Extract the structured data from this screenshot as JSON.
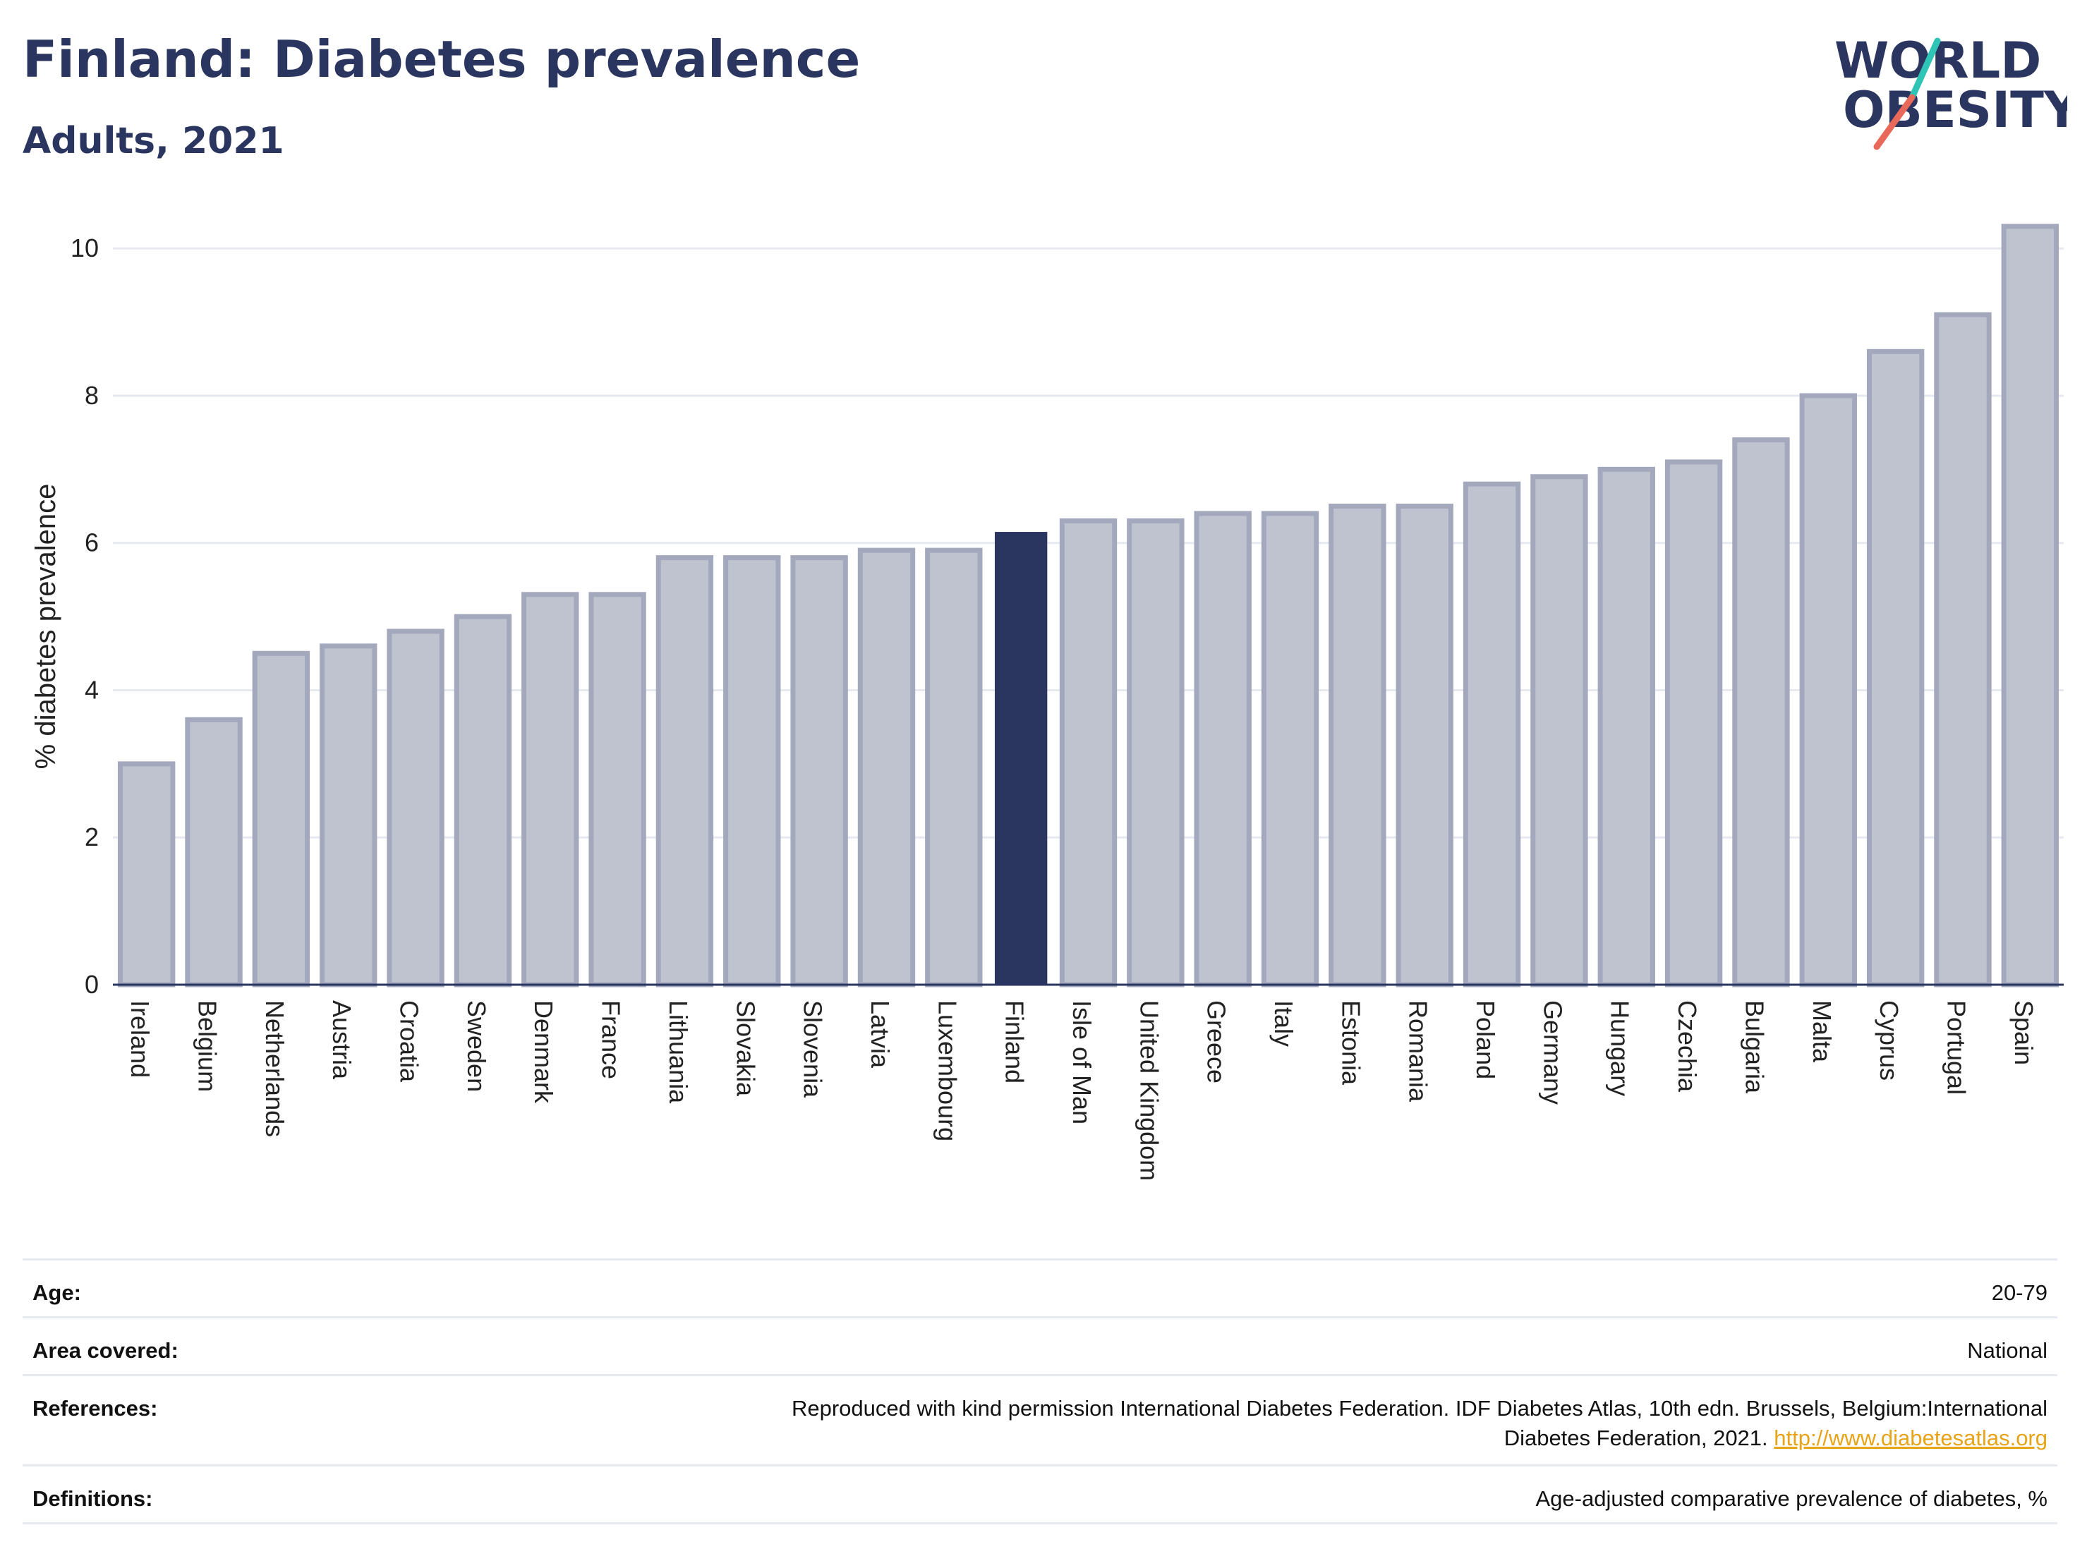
{
  "header": {
    "title": "Finland: Diabetes prevalence",
    "subtitle": "Adults, 2021"
  },
  "logo": {
    "line1": "WORLD",
    "line2": "OBESITY",
    "colors": {
      "text": "#2a3560",
      "slash_top": "#2ec4b6",
      "slash_bottom": "#e8685a"
    }
  },
  "colors": {
    "highlight_bar": "#2a3560",
    "other_bar_fill": "#bfc3d0",
    "other_bar_stroke": "#a3a8bd",
    "gridline": "#e6e9f0",
    "link": "#e8a317"
  },
  "chart_data": {
    "type": "bar",
    "title": "",
    "xlabel": "",
    "ylabel": "% diabetes prevalence",
    "ylim": [
      0,
      10.5
    ],
    "yticks": [
      0,
      2,
      4,
      6,
      8,
      10
    ],
    "grid": true,
    "highlight": "Finland",
    "categories": [
      "Ireland",
      "Belgium",
      "Netherlands",
      "Austria",
      "Croatia",
      "Sweden",
      "Denmark",
      "France",
      "Lithuania",
      "Slovakia",
      "Slovenia",
      "Latvia",
      "Luxembourg",
      "Finland",
      "Isle of Man",
      "United Kingdom",
      "Greece",
      "Italy",
      "Estonia",
      "Romania",
      "Poland",
      "Germany",
      "Hungary",
      "Czechia",
      "Bulgaria",
      "Malta",
      "Cyprus",
      "Portugal",
      "Spain"
    ],
    "values": [
      3.0,
      3.6,
      4.5,
      4.6,
      4.8,
      5.0,
      5.3,
      5.3,
      5.8,
      5.8,
      5.8,
      5.9,
      5.9,
      6.15,
      6.3,
      6.3,
      6.4,
      6.4,
      6.5,
      6.5,
      6.8,
      6.9,
      7.0,
      7.1,
      7.4,
      8.0,
      8.6,
      9.1,
      10.3
    ]
  },
  "metadata": {
    "age": {
      "label": "Age:",
      "value": "20-79"
    },
    "area": {
      "label": "Area covered:",
      "value": "National"
    },
    "references": {
      "label": "References:",
      "line1": "Reproduced with kind permission International Diabetes Federation.  IDF Diabetes Atlas, 10th edn. Brussels, Belgium:International",
      "line2": "Diabetes Federation, 2021. ",
      "link": "http://www.diabetesatlas.org"
    },
    "definitions": {
      "label": "Definitions:",
      "value": "Age-adjusted comparative prevalence of diabetes, %"
    }
  }
}
